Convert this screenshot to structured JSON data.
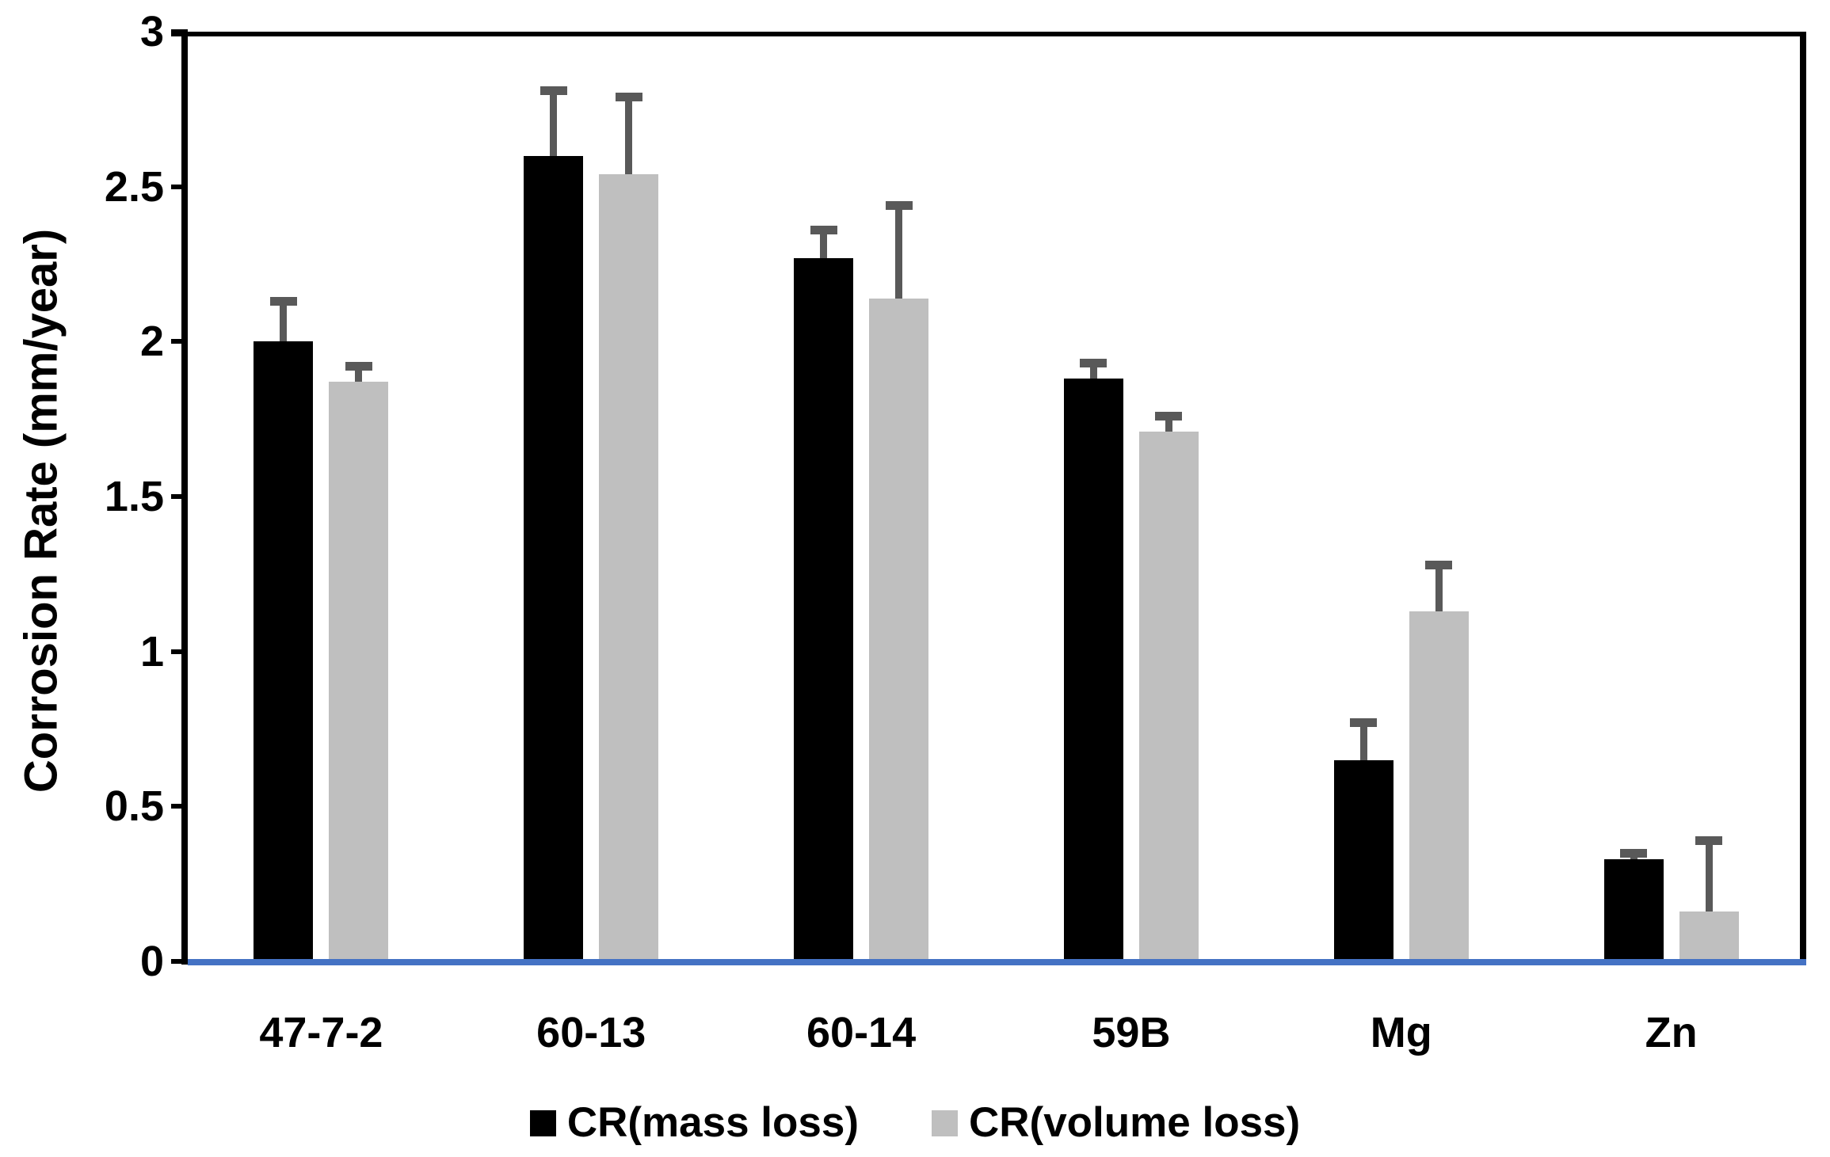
{
  "chart_data": {
    "type": "bar",
    "ylabel": "Corrosion Rate (mm/year)",
    "xlabel": "",
    "ylim": [
      0,
      3
    ],
    "yticks": [
      0,
      0.5,
      1,
      1.5,
      2,
      2.5,
      3
    ],
    "ytick_labels": [
      "0",
      "0.5",
      "1",
      "1.5",
      "2",
      "2.5",
      "3"
    ],
    "categories": [
      "47-7-2",
      "60-13",
      "60-14",
      "59B",
      "Mg",
      "Zn"
    ],
    "series": [
      {
        "name": "CR(mass loss)",
        "color": "#000000",
        "values": [
          2.0,
          2.6,
          2.27,
          1.88,
          0.65,
          0.33
        ],
        "errors_plus": [
          0.13,
          0.21,
          0.09,
          0.05,
          0.12,
          0.02
        ]
      },
      {
        "name": "CR(volume loss)",
        "color": "#bfbfbf",
        "values": [
          1.87,
          2.54,
          2.14,
          1.71,
          1.13,
          0.16
        ],
        "errors_plus": [
          0.05,
          0.25,
          0.3,
          0.05,
          0.15,
          0.23
        ]
      }
    ],
    "error_bar_color": "#595959",
    "baseline_color": "#4472c4",
    "axis_color": "#000000",
    "grid": false,
    "legend_position": "bottom"
  }
}
